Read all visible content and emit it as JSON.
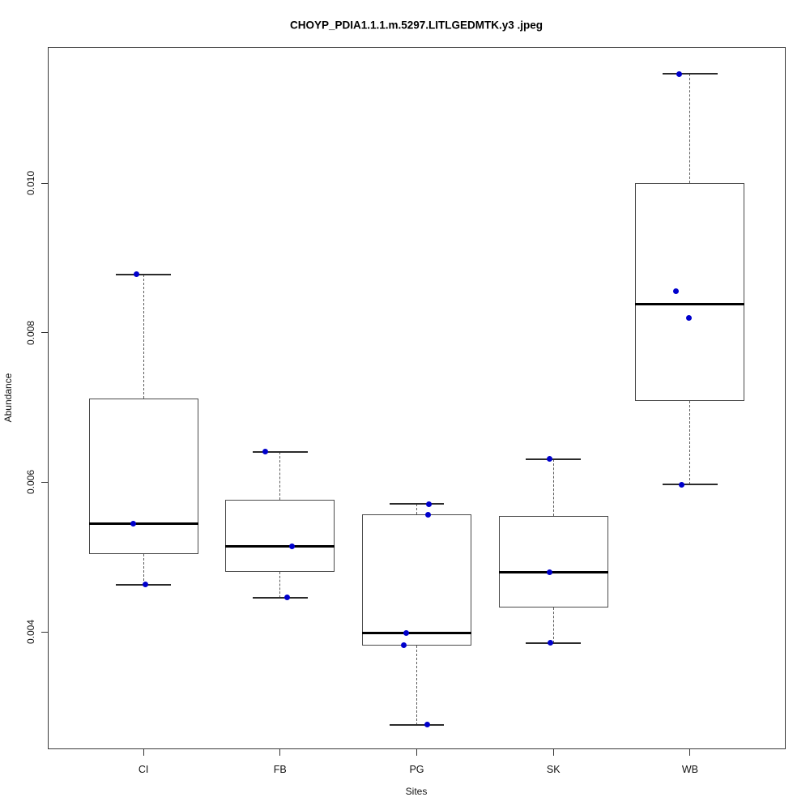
{
  "title": "CHOYP_PDIA1.1.1.m.5297.LITLGEDMTK.y3 .jpeg",
  "chart_data": {
    "type": "boxplot",
    "title": "CHOYP_PDIA1.1.1.m.5297.LITLGEDMTK.y3 .jpeg",
    "xlabel": "Sites",
    "ylabel": "Abundance",
    "categories": [
      "CI",
      "FB",
      "PG",
      "SK",
      "WB"
    ],
    "y_ticks": [
      {
        "value": 0.004,
        "label": "0.004"
      },
      {
        "value": 0.006,
        "label": "0.006"
      },
      {
        "value": 0.008,
        "label": "0.008"
      },
      {
        "value": 0.01,
        "label": "0.010"
      }
    ],
    "ylim": [
      0.00243,
      0.01182
    ],
    "xlim": [
      0.3,
      5.7
    ],
    "grid": false,
    "legend": "none",
    "box_width_units": 0.8,
    "cap_width_units": 0.4,
    "series": [
      {
        "name": "CI",
        "whisker_low": 0.00463,
        "q1": 0.00504,
        "median": 0.00545,
        "q3": 0.00712,
        "whisker_high": 0.00878,
        "points": [
          {
            "value": 0.00878,
            "dx": -9
          },
          {
            "value": 0.00545,
            "dx": -13
          },
          {
            "value": 0.00463,
            "dx": 2
          }
        ]
      },
      {
        "name": "FB",
        "whisker_low": 0.00446,
        "q1": 0.0048,
        "median": 0.00514,
        "q3": 0.00577,
        "whisker_high": 0.00641,
        "points": [
          {
            "value": 0.00641,
            "dx": -18
          },
          {
            "value": 0.00514,
            "dx": 15
          },
          {
            "value": 0.00446,
            "dx": 9
          }
        ]
      },
      {
        "name": "PG",
        "whisker_low": 0.00276,
        "q1": 0.00382,
        "median": 0.00398,
        "q3": 0.00557,
        "whisker_high": 0.00571,
        "points": [
          {
            "value": 0.00571,
            "dx": 15
          },
          {
            "value": 0.00557,
            "dx": 14
          },
          {
            "value": 0.00398,
            "dx": -13
          },
          {
            "value": 0.00382,
            "dx": -16
          },
          {
            "value": 0.00276,
            "dx": 13
          }
        ]
      },
      {
        "name": "SK",
        "whisker_low": 0.00385,
        "q1": 0.00433,
        "median": 0.0048,
        "q3": 0.00555,
        "whisker_high": 0.00631,
        "points": [
          {
            "value": 0.00631,
            "dx": -5
          },
          {
            "value": 0.0048,
            "dx": -5
          },
          {
            "value": 0.00385,
            "dx": -4
          }
        ]
      },
      {
        "name": "WB",
        "whisker_low": 0.00597,
        "q1": 0.00709,
        "median": 0.00838,
        "q3": 0.01,
        "whisker_high": 0.01146,
        "points": [
          {
            "value": 0.01146,
            "dx": -13
          },
          {
            "value": 0.00855,
            "dx": -17
          },
          {
            "value": 0.0082,
            "dx": -1
          },
          {
            "value": 0.00597,
            "dx": -10
          }
        ]
      }
    ],
    "colors": {
      "point": "#0000CC",
      "median": "#000000",
      "box_border": "#4a4a4a",
      "whisker": "#5a5a5a",
      "axis": "#333333",
      "background": "#ffffff"
    }
  }
}
